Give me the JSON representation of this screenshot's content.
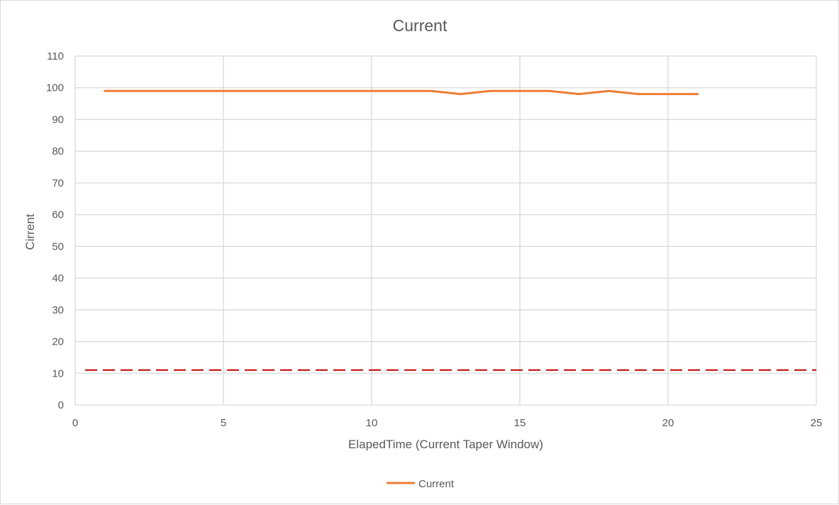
{
  "chart_data": {
    "type": "line",
    "title": "Current",
    "xlabel": "ElapedTime (Current Taper Window)",
    "ylabel": "Cirrent",
    "xlim": [
      0,
      25
    ],
    "ylim": [
      0,
      110
    ],
    "x_ticks": [
      0,
      5,
      10,
      15,
      20,
      25
    ],
    "y_ticks": [
      0,
      10,
      20,
      30,
      40,
      50,
      60,
      70,
      80,
      90,
      100,
      110
    ],
    "grid": "on",
    "legend_position": "bottom",
    "series": [
      {
        "name": "Current",
        "color": "#ed7d31",
        "x": [
          1,
          2,
          3,
          4,
          5,
          6,
          7,
          8,
          9,
          10,
          11,
          12,
          13,
          14,
          15,
          16,
          17,
          18,
          19,
          20,
          21
        ],
        "y": [
          99,
          99,
          99,
          99,
          99,
          99,
          99,
          99,
          99,
          99,
          99,
          99,
          98,
          99,
          99,
          99,
          98,
          99,
          98,
          98,
          98
        ]
      }
    ],
    "reference_line": {
      "y": 11,
      "color": "#c00000",
      "style": "dashed"
    }
  }
}
